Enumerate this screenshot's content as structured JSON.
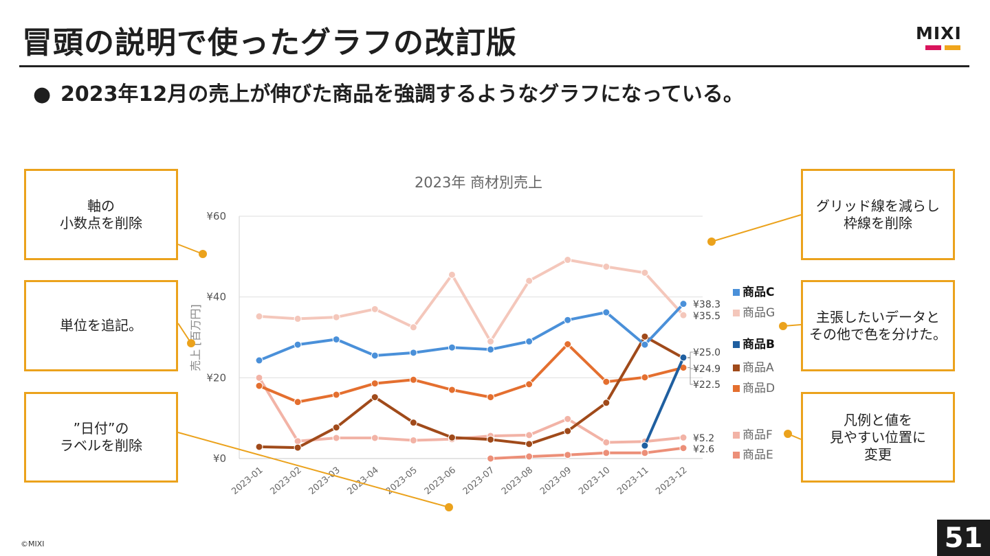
{
  "slide": {
    "title": "冒頭の説明で使ったグラフの改訂版",
    "bullet_symbol": "●",
    "bullet_text": "2023年12月の売上が伸びた商品を強調するようなグラフになっている。",
    "logo_text": "MIXI",
    "footer": "©MIXI",
    "page_number": "51"
  },
  "callouts": [
    {
      "id": "axis-decimal",
      "text": "軸の\n小数点を削除"
    },
    {
      "id": "unit",
      "text": "単位を追記。"
    },
    {
      "id": "date-label",
      "text": "”日付”の\nラベルを削除"
    },
    {
      "id": "gridlines",
      "text": "グリッド線を減らし\n枠線を削除"
    },
    {
      "id": "highlight",
      "text": "主張したいデータと\nその他で色を分けた。"
    },
    {
      "id": "legend",
      "text": "凡例と値を\n見やすい位置に\n変更"
    }
  ],
  "colors": {
    "accent": "#eba21c",
    "商品C": "#4a90d9",
    "商品G": "#f4c7bb",
    "商品B": "#1f5fa0",
    "商品A": "#a04a1a",
    "商品D": "#e46f2f",
    "商品F": "#f2b3a6",
    "商品E": "#ec8f78"
  },
  "chart_data": {
    "type": "line",
    "title": "2023年 商材別売上",
    "ylabel": "売上 [百万円]",
    "xlabel": "",
    "ylim": [
      0,
      60
    ],
    "yticks": [
      "¥0",
      "¥20",
      "¥40",
      "¥60"
    ],
    "ytick_values": [
      0,
      20,
      40,
      60
    ],
    "grid": true,
    "categories": [
      "2023-01",
      "2023-02",
      "2023-03",
      "2023-04",
      "2023-05",
      "2023-06",
      "2023-07",
      "2023-08",
      "2023-09",
      "2023-10",
      "2023-11",
      "2023-12"
    ],
    "series": [
      {
        "name": "商品G",
        "bold": false,
        "end_label": "¥35.5",
        "values": [
          35.2,
          34.6,
          35.0,
          37.0,
          32.5,
          45.5,
          29.0,
          44.0,
          49.2,
          47.5,
          46.0,
          35.5
        ]
      },
      {
        "name": "商品F",
        "bold": false,
        "end_label": "¥5.2",
        "values": [
          20.0,
          4.3,
          5.1,
          5.1,
          4.5,
          4.8,
          5.6,
          5.8,
          9.8,
          4.0,
          4.2,
          5.2
        ]
      },
      {
        "name": "商品E",
        "bold": false,
        "end_label": "¥2.6",
        "values": [
          null,
          null,
          null,
          null,
          null,
          null,
          0.0,
          0.5,
          0.9,
          1.4,
          1.4,
          2.6
        ]
      },
      {
        "name": "商品D",
        "bold": false,
        "end_label": "¥22.5",
        "values": [
          18.0,
          14.0,
          15.8,
          18.6,
          19.5,
          17.0,
          15.2,
          18.4,
          28.3,
          19.0,
          20.1,
          22.5
        ]
      },
      {
        "name": "商品A",
        "bold": false,
        "end_label": "¥24.9",
        "values": [
          2.9,
          2.7,
          7.7,
          15.2,
          8.9,
          5.2,
          4.7,
          3.6,
          6.8,
          13.8,
          30.2,
          24.9
        ]
      },
      {
        "name": "商品C",
        "bold": true,
        "end_label": "¥38.3",
        "values": [
          24.3,
          28.2,
          29.5,
          25.5,
          26.2,
          27.5,
          27.0,
          29.0,
          34.3,
          36.2,
          28.2,
          38.3
        ]
      },
      {
        "name": "商品B",
        "bold": true,
        "end_label": "¥25.0",
        "values": [
          null,
          null,
          null,
          null,
          null,
          null,
          null,
          null,
          null,
          null,
          3.2,
          25.0
        ]
      }
    ],
    "legend_order": [
      "商品C",
      "商品G",
      "商品B",
      "商品A",
      "商品D",
      "商品F",
      "商品E"
    ]
  }
}
